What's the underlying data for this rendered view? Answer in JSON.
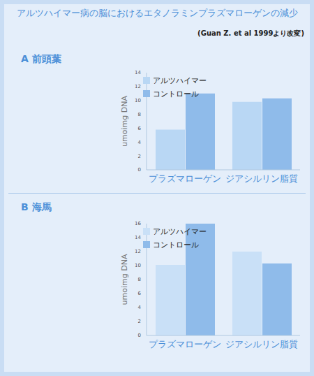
{
  "title": "アルツハイマー病の脳におけるエタノラミンプラズマローゲンの減少",
  "subtitle": "(Guan Z. et al 1999より改変)",
  "chart_data": [
    {
      "type": "bar",
      "title": "A 前頭葉",
      "y_label": "umoimg DNA",
      "categories": [
        "プラズマローゲン",
        "ジアシルリン脂質"
      ],
      "series": [
        {
          "name": "アルツハイマー",
          "color": "#b9d7f4",
          "values": [
            5.8,
            9.8
          ]
        },
        {
          "name": "コントロール",
          "color": "#8fbbea",
          "values": [
            11.0,
            10.3
          ]
        }
      ],
      "ylim": [
        0,
        14
      ],
      "yticks": [
        0,
        2,
        4,
        6,
        8,
        10,
        12,
        14
      ],
      "grid": false,
      "legend": "top"
    },
    {
      "type": "bar",
      "title": "B 海馬",
      "y_label": "umoimg DNA",
      "categories": [
        "プラズマローゲン",
        "ジアシルリン脂質"
      ],
      "series": [
        {
          "name": "アルツハイマー",
          "color": "#c9e0f7",
          "values": [
            10.1,
            12.0
          ]
        },
        {
          "name": "コントロール",
          "color": "#8fbbea",
          "values": [
            16.0,
            10.3
          ]
        }
      ],
      "ylim": [
        0,
        16
      ],
      "yticks": [
        0,
        2,
        4,
        6,
        8,
        10,
        12,
        14,
        16
      ],
      "grid": false,
      "legend": "top"
    }
  ]
}
